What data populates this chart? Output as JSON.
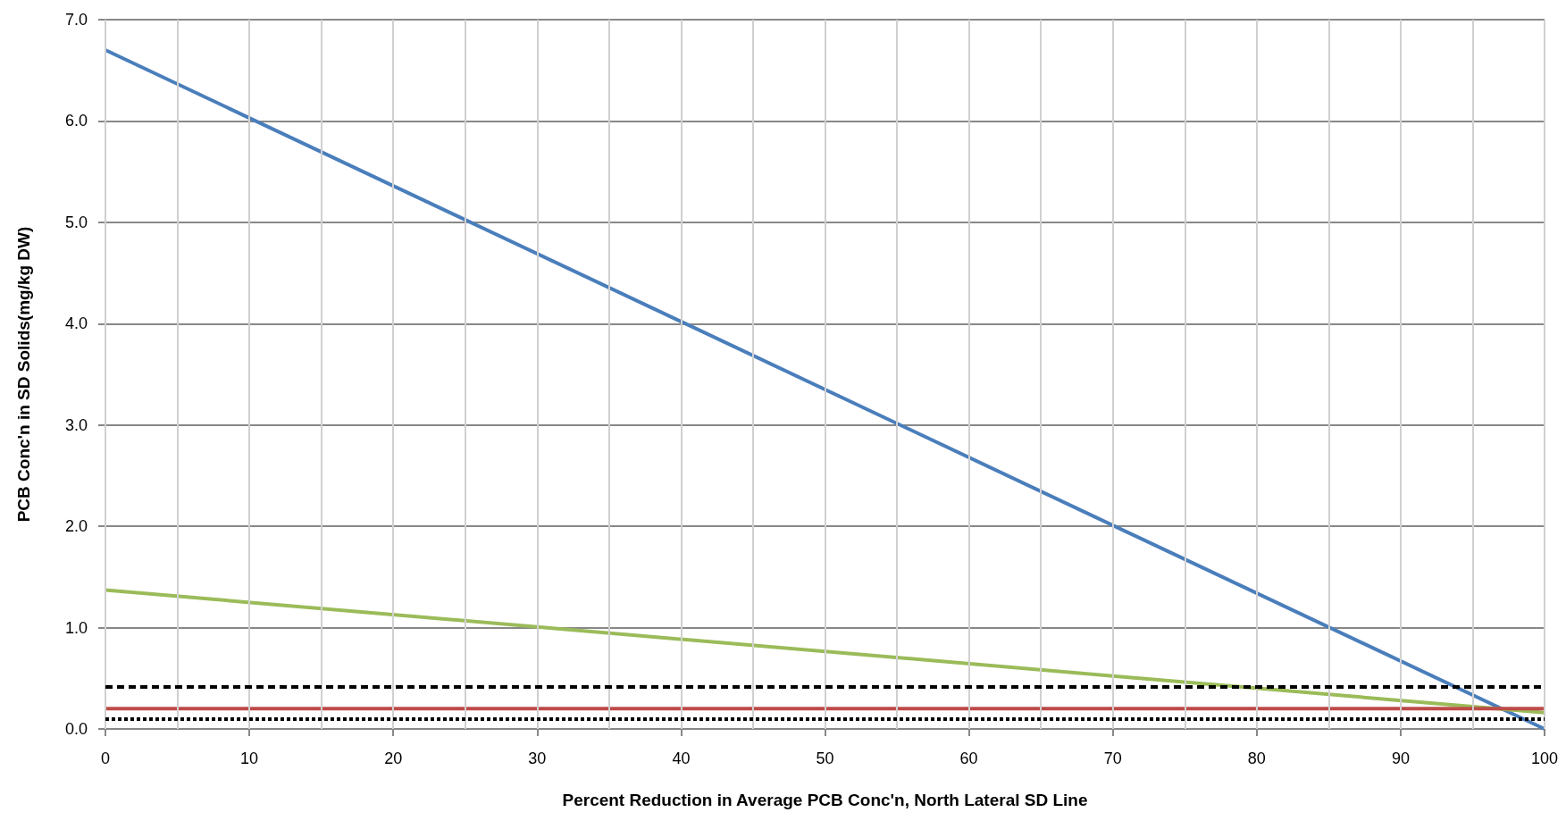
{
  "chart_data": {
    "type": "line",
    "xlabel": "Percent Reduction in Average PCB Conc'n, North Lateral SD Line",
    "ylabel": "PCB Conc'n in SD Solids(mg/kg DW)",
    "xlim": [
      0,
      100
    ],
    "ylim": [
      0,
      7
    ],
    "xticks": [
      0,
      {
        "value": 5,
        "label": null
      },
      10,
      {
        "value": 15,
        "label": null
      },
      20,
      {
        "value": 25,
        "label": null
      },
      30,
      {
        "value": 35,
        "label": null
      },
      40,
      {
        "value": 45,
        "label": null
      },
      50,
      {
        "value": 55,
        "label": null
      },
      60,
      {
        "value": 65,
        "label": null
      },
      70,
      {
        "value": 75,
        "label": null
      },
      80,
      {
        "value": 85,
        "label": null
      },
      90,
      {
        "value": 95,
        "label": null
      },
      100
    ],
    "yticks": [
      {
        "value": 0,
        "label": "0.0"
      },
      {
        "value": 1,
        "label": "1.0"
      },
      {
        "value": 2,
        "label": "2.0"
      },
      {
        "value": 3,
        "label": "3.0"
      },
      {
        "value": 4,
        "label": "4.0"
      },
      {
        "value": 5,
        "label": "5.0"
      },
      {
        "value": 6,
        "label": "6.0"
      },
      {
        "value": 7,
        "label": "7.0"
      }
    ],
    "grid": true,
    "x": [
      0,
      100
    ],
    "marker": "none",
    "line_style": "solid",
    "series": [
      {
        "color": "#4a7ebb",
        "values": [
          6.7,
          0
        ]
      },
      {
        "color": "#9bbb59",
        "values": [
          1.37,
          0.16
        ]
      },
      {
        "color": "#be4b48",
        "values": [
          0.2,
          0.2
        ]
      }
    ],
    "ref_lines": [
      {
        "axis": "y",
        "value": 0.42,
        "color": "#000000",
        "line_style": "dashed"
      },
      {
        "axis": "y",
        "value": 0.1,
        "color": "#000000",
        "line_style": "dotted"
      }
    ]
  }
}
